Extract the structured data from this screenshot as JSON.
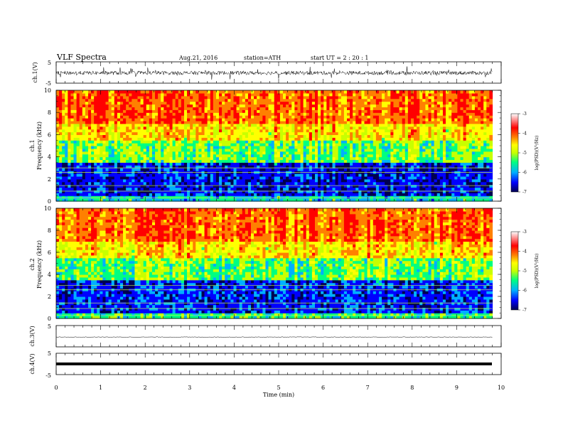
{
  "header": {
    "title": "VLF  Spectra",
    "date": "Aug.21, 2016",
    "station": "station=ATH",
    "start": "start  UT  =   2  : 20 : 1"
  },
  "colors": {
    "axis": "#000000",
    "colorbar_stops": [
      "#000050",
      "#0000ff",
      "#00b0ff",
      "#00ff80",
      "#c8ff00",
      "#ffff00",
      "#ff8000",
      "#ff0000",
      "#ffffff"
    ]
  },
  "chart_data": [
    {
      "id": "ch1_waveform",
      "type": "line",
      "ylabel": "ch.1(V)",
      "ylim": [
        -5,
        5
      ],
      "yticks": [
        "5",
        "-5"
      ],
      "xlim": [
        0,
        10
      ],
      "trace": "noisy waveform around ~-0.2 V, amplitude about ±1 V with spikes to ±2.5 V"
    },
    {
      "id": "ch1_spectrogram",
      "type": "heatmap",
      "ylabel_top": "ch.1",
      "ylabel": "Frequency  (kHz)",
      "ylim": [
        0,
        10
      ],
      "yticks": [
        "0",
        "2",
        "4",
        "6",
        "8",
        "10"
      ],
      "xlim": [
        0,
        10
      ],
      "colorbar": {
        "label": "log(PSD)(V²/Hz)",
        "range": [
          -7,
          -3
        ],
        "ticks": [
          "-3",
          "-4",
          "-5",
          "-6",
          "-7"
        ]
      },
      "bands": [
        {
          "from_khz": 0,
          "to_khz": 0.5,
          "level": -5.5
        },
        {
          "from_khz": 0.5,
          "to_khz": 3.5,
          "level": -6.3
        },
        {
          "from_khz": 3.5,
          "to_khz": 5.5,
          "level": -5.0
        },
        {
          "from_khz": 5.5,
          "to_khz": 7,
          "level": -4.2
        },
        {
          "from_khz": 7,
          "to_khz": 10,
          "level": -3.6
        }
      ]
    },
    {
      "id": "ch2_spectrogram",
      "type": "heatmap",
      "ylabel_top": "ch.2",
      "ylabel": "Frequency  (kHz)",
      "ylim": [
        0,
        10
      ],
      "yticks": [
        "0",
        "2",
        "4",
        "6",
        "8",
        "10"
      ],
      "xlim": [
        0,
        10
      ],
      "colorbar": {
        "label": "log(PSD)(V²/Hz)",
        "range": [
          -7,
          -3
        ],
        "ticks": [
          "-3",
          "-4",
          "-5",
          "-6",
          "-7"
        ]
      },
      "bands": [
        {
          "from_khz": 0,
          "to_khz": 0.5,
          "level": -5.2
        },
        {
          "from_khz": 0.5,
          "to_khz": 3.5,
          "level": -6.2
        },
        {
          "from_khz": 3.5,
          "to_khz": 5.5,
          "level": -5.0
        },
        {
          "from_khz": 5.5,
          "to_khz": 7,
          "level": -4.2
        },
        {
          "from_khz": 7,
          "to_khz": 10,
          "level": -3.6
        }
      ]
    },
    {
      "id": "ch3_waveform",
      "type": "line",
      "ylabel": "ch.3(V)",
      "ylim": [
        -5,
        5
      ],
      "yticks": [
        "5"
      ],
      "xlim": [
        0,
        10
      ],
      "trace": "nearly flat line near 0 V"
    },
    {
      "id": "ch4_waveform",
      "type": "line",
      "ylabel": "ch.4(V)",
      "ylim": [
        -5,
        5
      ],
      "yticks": [
        "5",
        "-5"
      ],
      "xlim": [
        0,
        10
      ],
      "trace": "thick flat line near 0 V"
    }
  ],
  "xaxis": {
    "label": "Time  (min)",
    "ticks": [
      "0",
      "1",
      "2",
      "3",
      "4",
      "5",
      "6",
      "7",
      "8",
      "9",
      "10"
    ],
    "xlim": [
      0,
      10
    ]
  }
}
